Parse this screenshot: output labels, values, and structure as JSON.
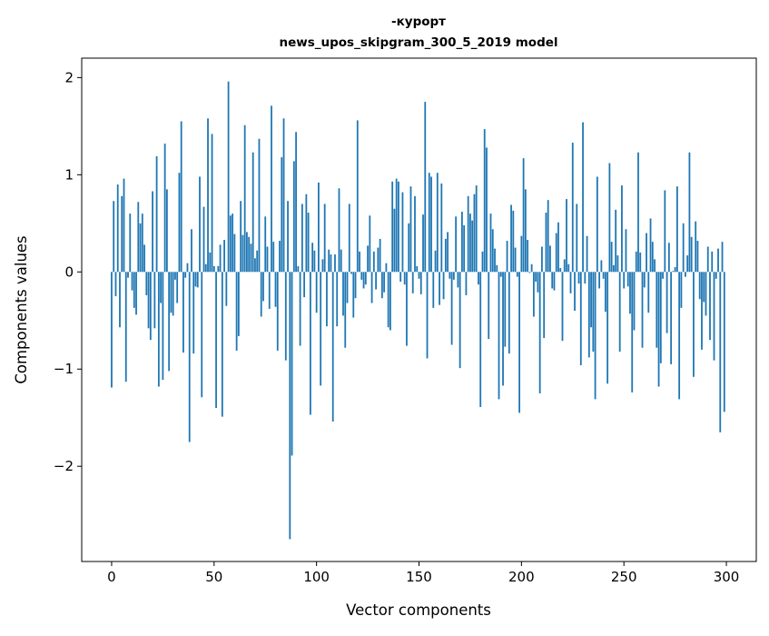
{
  "chart_data": {
    "type": "bar",
    "title": "-курорт",
    "subtitle": "news_upos_skipgram_300_5_2019 model",
    "xlabel": "Vector components",
    "ylabel": "Components values",
    "xlim": [
      -14.6,
      314.6
    ],
    "ylim": [
      -2.98,
      2.2
    ],
    "xticks": [
      0,
      50,
      100,
      150,
      200,
      250,
      300
    ],
    "xtick_labels": [
      "0",
      "50",
      "100",
      "150",
      "200",
      "250",
      "300"
    ],
    "yticks": [
      2,
      1,
      0,
      -1,
      -2
    ],
    "ytick_labels": [
      "2",
      "1",
      "0",
      "−1",
      "−2"
    ],
    "grid": false,
    "color": "#1f77b4",
    "values": [
      -1.19,
      0.73,
      -0.25,
      0.9,
      -0.57,
      0.78,
      0.96,
      -1.13,
      -0.06,
      0.6,
      -0.19,
      -0.37,
      -0.44,
      0.72,
      0.5,
      0.6,
      0.28,
      -0.24,
      -0.58,
      -0.7,
      0.83,
      -0.58,
      1.19,
      -1.18,
      -0.32,
      -1.11,
      1.32,
      0.85,
      -1.02,
      -0.42,
      -0.45,
      -0.08,
      -0.32,
      1.02,
      1.55,
      -0.83,
      -0.06,
      0.09,
      -1.75,
      0.44,
      -0.84,
      -0.15,
      -0.16,
      0.98,
      -1.29,
      0.67,
      0.08,
      1.58,
      0.2,
      1.42,
      0.06,
      -1.4,
      0.06,
      0.28,
      -1.49,
      0.33,
      -0.35,
      1.96,
      0.58,
      0.6,
      0.39,
      -0.81,
      -0.66,
      0.73,
      0.38,
      1.51,
      0.41,
      0.36,
      0.29,
      1.23,
      0.14,
      0.22,
      1.37,
      -0.46,
      -0.3,
      0.57,
      0.26,
      -0.38,
      1.71,
      0.31,
      -0.36,
      -0.81,
      0.32,
      1.18,
      1.58,
      -0.91,
      0.73,
      -2.75,
      -1.89,
      1.14,
      1.44,
      0.06,
      -0.76,
      0.7,
      -0.26,
      0.8,
      0.61,
      -1.47,
      0.3,
      0.22,
      -0.42,
      0.92,
      -1.17,
      0.13,
      0.7,
      -0.56,
      0.23,
      0.18,
      -1.54,
      0.18,
      -0.56,
      0.86,
      0.23,
      -0.45,
      -0.78,
      -0.32,
      0.7,
      -0.02,
      -0.47,
      -0.27,
      1.56,
      0.21,
      -0.08,
      -0.17,
      -0.13,
      0.27,
      0.58,
      -0.32,
      0.21,
      -0.18,
      0.25,
      0.34,
      -0.27,
      -0.21,
      0.09,
      -0.57,
      -0.6,
      0.93,
      0.65,
      0.96,
      0.93,
      -0.1,
      0.82,
      -0.13,
      -0.76,
      0.5,
      0.88,
      -0.22,
      0.78,
      0.06,
      -0.07,
      -0.23,
      0.59,
      1.75,
      -0.89,
      1.02,
      0.98,
      -0.37,
      0.22,
      1.02,
      -0.34,
      0.91,
      -0.28,
      0.34,
      0.41,
      -0.07,
      -0.75,
      -0.08,
      0.57,
      -0.16,
      -0.99,
      0.62,
      0.48,
      -0.24,
      0.78,
      0.6,
      0.53,
      0.8,
      0.89,
      -0.13,
      -1.39,
      0.21,
      1.47,
      1.28,
      -0.69,
      0.6,
      0.44,
      0.24,
      0.07,
      -1.31,
      -0.05,
      -1.17,
      -0.77,
      0.32,
      -0.84,
      0.69,
      0.63,
      0.25,
      -0.05,
      -1.45,
      0.37,
      1.17,
      0.85,
      0.33,
      -0.01,
      0.08,
      -0.46,
      -0.1,
      -0.21,
      -1.25,
      0.26,
      -0.68,
      0.61,
      0.74,
      0.27,
      -0.17,
      -0.19,
      0.4,
      0.51,
      0.04,
      -0.71,
      0.13,
      0.75,
      0.08,
      -0.22,
      1.33,
      -0.4,
      0.7,
      -0.12,
      -0.96,
      1.54,
      -0.12,
      0.37,
      -0.88,
      -0.57,
      -0.82,
      -1.31,
      0.98,
      -0.17,
      0.12,
      -0.07,
      -0.41,
      -1.15,
      1.12,
      0.31,
      0.07,
      0.64,
      0.17,
      -0.82,
      0.89,
      -0.17,
      0.44,
      -0.15,
      -0.43,
      -1.24,
      -0.6,
      0.21,
      1.23,
      0.2,
      -0.78,
      -0.16,
      0.4,
      -0.42,
      0.55,
      0.31,
      0.13,
      -0.78,
      -1.18,
      -0.94,
      -0.07,
      0.84,
      -0.63,
      0.3,
      -0.95,
      0.01,
      0.05,
      0.88,
      -1.31,
      -0.37,
      0.5,
      -0.05,
      0.17,
      1.23,
      0.36,
      -1.08,
      0.52,
      0.32,
      -0.28,
      -0.8,
      -0.31,
      -0.45,
      0.26,
      -0.7,
      0.21,
      -0.91,
      -0.07,
      0.24,
      -1.65,
      0.31,
      -1.44
    ]
  }
}
